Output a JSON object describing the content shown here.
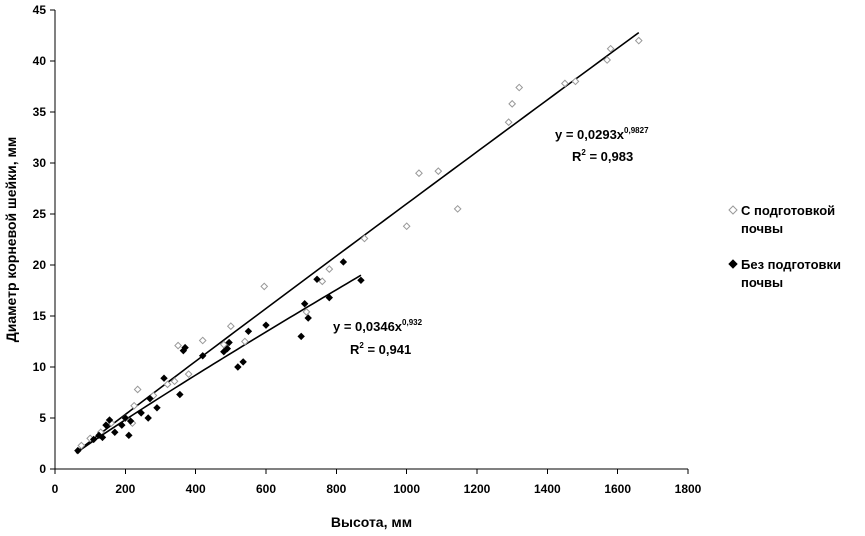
{
  "chart_data": {
    "type": "scatter",
    "title": "",
    "xlabel": "Высота, мм",
    "ylabel": "Диаметр корневой шейки, мм",
    "xlim": [
      0,
      1800
    ],
    "ylim": [
      0,
      45
    ],
    "x_ticks": [
      "0",
      "200",
      "400",
      "600",
      "800",
      "1000",
      "1200",
      "1400",
      "1600",
      "1800"
    ],
    "y_ticks": [
      "0",
      "5",
      "10",
      "15",
      "20",
      "25",
      "30",
      "35",
      "40",
      "45"
    ],
    "grid": false,
    "legend_position": "right",
    "series": [
      {
        "name_line1": "С подготовкой",
        "name_line2": "почвы",
        "marker": "open-diamond",
        "color": "#999999",
        "equation": "y = 0,0293x",
        "exponent": "0,9827",
        "r2_label": "R",
        "r2_sup": "2",
        "r2_value": " = 0,983",
        "trend": {
          "a": 0.0293,
          "b": 0.9827,
          "x_from": 60,
          "x_to": 1660
        },
        "points": [
          [
            75,
            2.3
          ],
          [
            100,
            3.0
          ],
          [
            130,
            3.6
          ],
          [
            160,
            4.5
          ],
          [
            200,
            5.0
          ],
          [
            220,
            4.5
          ],
          [
            225,
            6.2
          ],
          [
            235,
            7.8
          ],
          [
            280,
            7.2
          ],
          [
            320,
            8.3
          ],
          [
            340,
            8.6
          ],
          [
            350,
            12.1
          ],
          [
            380,
            9.3
          ],
          [
            420,
            12.6
          ],
          [
            480,
            12.2
          ],
          [
            500,
            14.0
          ],
          [
            540,
            12.5
          ],
          [
            595,
            17.9
          ],
          [
            715,
            15.4
          ],
          [
            760,
            18.4
          ],
          [
            780,
            19.6
          ],
          [
            880,
            22.6
          ],
          [
            1000,
            23.8
          ],
          [
            1035,
            29.0
          ],
          [
            1090,
            29.2
          ],
          [
            1145,
            25.5
          ],
          [
            1290,
            34.0
          ],
          [
            1300,
            35.8
          ],
          [
            1320,
            37.4
          ],
          [
            1450,
            37.8
          ],
          [
            1480,
            38.0
          ],
          [
            1570,
            40.1
          ],
          [
            1580,
            41.2
          ],
          [
            1660,
            42.0
          ]
        ]
      },
      {
        "name_line1": "Без подготовки",
        "name_line2": "почвы",
        "marker": "filled-diamond",
        "color": "#000000",
        "equation": "y = 0,0346x",
        "exponent": "0,932",
        "r2_label": "R",
        "r2_sup": "2",
        "r2_value": " = 0,941",
        "trend": {
          "a": 0.0346,
          "b": 0.932,
          "x_from": 60,
          "x_to": 870
        },
        "points": [
          [
            65,
            1.8
          ],
          [
            110,
            2.9
          ],
          [
            125,
            3.3
          ],
          [
            135,
            3.1
          ],
          [
            145,
            4.3
          ],
          [
            155,
            4.8
          ],
          [
            170,
            3.6
          ],
          [
            190,
            4.3
          ],
          [
            200,
            5.0
          ],
          [
            210,
            3.3
          ],
          [
            215,
            4.7
          ],
          [
            245,
            5.5
          ],
          [
            265,
            5.0
          ],
          [
            270,
            6.9
          ],
          [
            290,
            6.0
          ],
          [
            310,
            8.9
          ],
          [
            355,
            7.3
          ],
          [
            365,
            11.6
          ],
          [
            370,
            11.9
          ],
          [
            420,
            11.1
          ],
          [
            480,
            11.5
          ],
          [
            490,
            11.8
          ],
          [
            495,
            12.4
          ],
          [
            520,
            10.0
          ],
          [
            535,
            10.5
          ],
          [
            550,
            13.5
          ],
          [
            600,
            14.1
          ],
          [
            700,
            13.0
          ],
          [
            710,
            16.2
          ],
          [
            720,
            14.8
          ],
          [
            745,
            18.6
          ],
          [
            780,
            16.8
          ],
          [
            820,
            20.3
          ],
          [
            870,
            18.5
          ]
        ]
      }
    ]
  }
}
